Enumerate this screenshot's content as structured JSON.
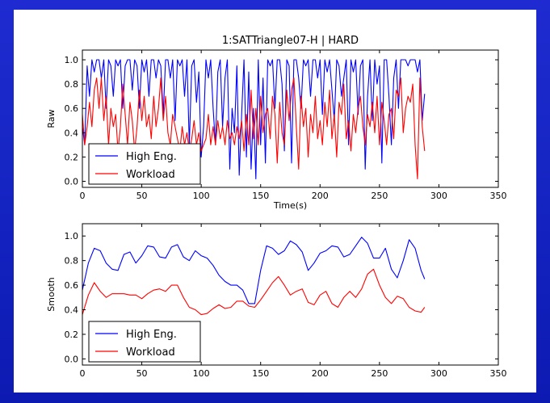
{
  "colors": {
    "background": "#1626c4",
    "panel": "#ffffff",
    "high_eng": "#0000ff",
    "workload": "#ff0000"
  },
  "chart_data": [
    {
      "type": "line",
      "title": "1:SATTriangle07-H | HARD",
      "xlabel": "Time(s)",
      "ylabel": "Raw",
      "xlim": [
        0,
        350
      ],
      "ylim": [
        -0.05,
        1.08
      ],
      "xticks": [
        0,
        50,
        100,
        150,
        200,
        250,
        300,
        350
      ],
      "yticks": [
        0.0,
        0.2,
        0.4,
        0.6,
        0.8,
        1.0
      ],
      "xtick_labels": [
        "0",
        "50",
        "100",
        "150",
        "200",
        "250",
        "300",
        "350"
      ],
      "ytick_labels": [
        "0.0",
        "0.2",
        "0.4",
        "0.6",
        "0.8",
        "1.0"
      ],
      "legend": "lower-left",
      "series": [
        {
          "name": "High Eng.",
          "color": "#0000ff",
          "x": [
            0,
            2,
            4,
            6,
            8,
            10,
            12,
            14,
            16,
            18,
            20,
            22,
            24,
            26,
            28,
            30,
            32,
            34,
            36,
            38,
            40,
            42,
            44,
            46,
            48,
            50,
            52,
            54,
            56,
            58,
            60,
            62,
            64,
            66,
            68,
            70,
            72,
            74,
            76,
            78,
            80,
            82,
            84,
            86,
            88,
            90,
            92,
            94,
            96,
            98,
            100,
            102,
            104,
            106,
            108,
            110,
            112,
            114,
            116,
            118,
            120,
            122,
            124,
            126,
            128,
            130,
            132,
            134,
            136,
            138,
            140,
            142,
            144,
            146,
            148,
            150,
            152,
            154,
            156,
            158,
            160,
            162,
            164,
            166,
            168,
            170,
            172,
            174,
            176,
            178,
            180,
            182,
            184,
            186,
            188,
            190,
            192,
            194,
            196,
            198,
            200,
            202,
            204,
            206,
            208,
            210,
            212,
            214,
            216,
            218,
            220,
            222,
            224,
            226,
            228,
            230,
            232,
            234,
            236,
            238,
            240,
            242,
            244,
            246,
            248,
            250,
            252,
            254,
            256,
            258,
            260,
            262,
            264,
            266,
            268,
            270,
            272,
            274,
            276,
            278,
            280,
            282,
            284,
            286,
            288
          ],
          "values": [
            0.45,
            0.3,
            0.95,
            0.7,
            1.0,
            0.9,
            1.0,
            1.0,
            0.85,
            1.0,
            0.6,
            1.0,
            0.95,
            0.7,
            1.0,
            0.95,
            1.0,
            0.6,
            0.95,
            1.0,
            1.0,
            0.75,
            1.0,
            0.95,
            0.6,
            1.0,
            0.9,
            1.0,
            0.7,
            1.0,
            1.0,
            0.85,
            1.0,
            0.95,
            0.55,
            1.0,
            1.0,
            0.85,
            1.0,
            0.5,
            1.0,
            0.95,
            1.0,
            0.7,
            1.0,
            0.3,
            0.95,
            1.0,
            0.65,
            0.9,
            0.2,
            0.45,
            1.0,
            0.85,
            1.0,
            0.6,
            0.3,
            0.9,
            1.0,
            0.45,
            0.85,
            1.0,
            0.1,
            0.6,
            0.4,
            0.95,
            0.05,
            0.55,
            1.0,
            0.2,
            0.9,
            0.1,
            0.6,
            0.02,
            1.0,
            0.3,
            0.85,
            0.15,
            1.0,
            0.95,
            1.0,
            0.6,
            1.0,
            1.0,
            0.8,
            0.25,
            1.0,
            0.95,
            0.15,
            1.0,
            1.0,
            0.85,
            0.6,
            1.0,
            0.95,
            1.0,
            0.7,
            1.0,
            1.0,
            0.85,
            1.0,
            0.55,
            1.0,
            0.9,
            1.0,
            0.75,
            0.5,
            1.0,
            0.95,
            0.7,
            0.85,
            1.0,
            0.3,
            1.0,
            0.9,
            1.0,
            0.55,
            0.95,
            1.0,
            0.1,
            0.7,
            1.0,
            0.5,
            1.0,
            0.8,
            0.95,
            0.15,
            1.0,
            1.0,
            0.7,
            0.3,
            0.85,
            1.0,
            0.6,
            1.0,
            1.0,
            1.0,
            0.95,
            1.0,
            1.0,
            1.0,
            0.9,
            1.0,
            0.5,
            0.72
          ],
          "note_unused": ""
        },
        {
          "name": "Workload",
          "color": "#ff0000",
          "x": [
            0,
            2,
            4,
            6,
            8,
            10,
            12,
            14,
            16,
            18,
            20,
            22,
            24,
            26,
            28,
            30,
            32,
            34,
            36,
            38,
            40,
            42,
            44,
            46,
            48,
            50,
            52,
            54,
            56,
            58,
            60,
            62,
            64,
            66,
            68,
            70,
            72,
            74,
            76,
            78,
            80,
            82,
            84,
            86,
            88,
            90,
            92,
            94,
            96,
            98,
            100,
            102,
            104,
            106,
            108,
            110,
            112,
            114,
            116,
            118,
            120,
            122,
            124,
            126,
            128,
            130,
            132,
            134,
            136,
            138,
            140,
            142,
            144,
            146,
            148,
            150,
            152,
            154,
            156,
            158,
            160,
            162,
            164,
            166,
            168,
            170,
            172,
            174,
            176,
            178,
            180,
            182,
            184,
            186,
            188,
            190,
            192,
            194,
            196,
            198,
            200,
            202,
            204,
            206,
            208,
            210,
            212,
            214,
            216,
            218,
            220,
            222,
            224,
            226,
            228,
            230,
            232,
            234,
            236,
            238,
            240,
            242,
            244,
            246,
            248,
            250,
            252,
            254,
            256,
            258,
            260,
            262,
            264,
            266,
            268,
            270,
            272,
            274,
            276,
            278,
            280,
            282,
            284,
            286,
            288
          ],
          "values": [
            0.55,
            0.3,
            0.45,
            0.65,
            0.45,
            0.75,
            0.85,
            0.6,
            0.85,
            0.5,
            0.7,
            0.3,
            0.6,
            0.45,
            0.55,
            0.25,
            0.45,
            0.8,
            0.55,
            0.3,
            0.65,
            0.5,
            0.25,
            0.45,
            0.75,
            0.5,
            0.7,
            0.45,
            0.55,
            0.35,
            0.7,
            0.45,
            0.6,
            0.85,
            0.5,
            0.7,
            0.4,
            0.3,
            0.55,
            0.45,
            0.35,
            0.25,
            0.45,
            0.3,
            0.4,
            0.25,
            0.35,
            0.5,
            0.3,
            0.4,
            0.25,
            0.3,
            0.35,
            0.55,
            0.3,
            0.45,
            0.3,
            0.5,
            0.35,
            0.45,
            0.3,
            0.5,
            0.35,
            0.4,
            0.3,
            0.45,
            0.35,
            0.5,
            0.25,
            0.55,
            0.3,
            0.75,
            0.35,
            0.6,
            0.3,
            0.7,
            0.4,
            0.55,
            0.6,
            0.35,
            0.7,
            0.55,
            0.15,
            0.65,
            0.4,
            0.3,
            0.75,
            0.5,
            0.75,
            0.85,
            0.45,
            0.1,
            0.7,
            0.45,
            0.6,
            0.2,
            0.55,
            0.4,
            0.7,
            0.35,
            0.5,
            0.3,
            0.65,
            0.45,
            0.75,
            0.35,
            0.55,
            0.2,
            0.65,
            0.55,
            0.8,
            0.35,
            0.5,
            0.25,
            0.55,
            0.4,
            0.6,
            0.7,
            0.45,
            0.3,
            0.55,
            0.45,
            0.65,
            0.4,
            0.7,
            0.3,
            0.65,
            0.5,
            0.3,
            0.55,
            0.6,
            0.35,
            0.75,
            0.7,
            0.85,
            0.4,
            0.6,
            0.7,
            0.65,
            0.8,
            0.3,
            0.02,
            0.85,
            0.45,
            0.25
          ],
          "note_unused": ""
        }
      ]
    },
    {
      "type": "line",
      "title": "",
      "xlabel": "",
      "ylabel": "Smooth",
      "xlim": [
        0,
        350
      ],
      "ylim": [
        -0.05,
        1.1
      ],
      "xticks": [
        0,
        50,
        100,
        150,
        200,
        250,
        300,
        350
      ],
      "yticks": [
        0.0,
        0.2,
        0.4,
        0.6,
        0.8,
        1.0
      ],
      "xtick_labels": [
        "0",
        "50",
        "100",
        "150",
        "200",
        "250",
        "300",
        "350"
      ],
      "ytick_labels": [
        "0.0",
        "0.2",
        "0.4",
        "0.6",
        "0.8",
        "1.0"
      ],
      "legend": "lower-left",
      "series": [
        {
          "name": "High Eng.",
          "color": "#0000ff",
          "x": [
            0,
            5,
            10,
            15,
            20,
            25,
            30,
            35,
            40,
            45,
            50,
            55,
            60,
            65,
            70,
            75,
            80,
            85,
            90,
            95,
            100,
            105,
            110,
            115,
            120,
            125,
            130,
            135,
            140,
            145,
            150,
            155,
            160,
            165,
            170,
            175,
            180,
            185,
            190,
            195,
            200,
            205,
            210,
            215,
            220,
            225,
            230,
            235,
            240,
            245,
            250,
            255,
            260,
            265,
            270,
            275,
            280,
            285,
            288
          ],
          "values": [
            0.56,
            0.78,
            0.9,
            0.88,
            0.78,
            0.73,
            0.72,
            0.85,
            0.87,
            0.78,
            0.84,
            0.92,
            0.91,
            0.83,
            0.82,
            0.91,
            0.93,
            0.83,
            0.8,
            0.88,
            0.84,
            0.82,
            0.76,
            0.68,
            0.63,
            0.6,
            0.6,
            0.56,
            0.45,
            0.45,
            0.72,
            0.92,
            0.9,
            0.85,
            0.88,
            0.96,
            0.93,
            0.87,
            0.72,
            0.78,
            0.86,
            0.88,
            0.92,
            0.91,
            0.83,
            0.85,
            0.92,
            0.99,
            0.94,
            0.82,
            0.82,
            0.9,
            0.73,
            0.66,
            0.8,
            0.97,
            0.9,
            0.72,
            0.65
          ],
          "note_unused": ""
        },
        {
          "name": "Workload",
          "color": "#ff0000",
          "x": [
            0,
            5,
            10,
            15,
            20,
            25,
            30,
            35,
            40,
            45,
            50,
            55,
            60,
            65,
            70,
            75,
            80,
            85,
            90,
            95,
            100,
            105,
            110,
            115,
            120,
            125,
            130,
            135,
            140,
            145,
            150,
            155,
            160,
            165,
            170,
            175,
            180,
            185,
            190,
            195,
            200,
            205,
            210,
            215,
            220,
            225,
            230,
            235,
            240,
            245,
            250,
            255,
            260,
            265,
            270,
            275,
            280,
            285,
            288
          ],
          "values": [
            0.36,
            0.52,
            0.62,
            0.55,
            0.5,
            0.53,
            0.53,
            0.53,
            0.52,
            0.52,
            0.49,
            0.53,
            0.56,
            0.57,
            0.55,
            0.6,
            0.6,
            0.5,
            0.42,
            0.4,
            0.36,
            0.37,
            0.41,
            0.44,
            0.41,
            0.42,
            0.47,
            0.47,
            0.43,
            0.42,
            0.48,
            0.55,
            0.62,
            0.67,
            0.6,
            0.52,
            0.55,
            0.57,
            0.46,
            0.44,
            0.52,
            0.55,
            0.45,
            0.42,
            0.5,
            0.55,
            0.5,
            0.57,
            0.69,
            0.73,
            0.6,
            0.5,
            0.45,
            0.51,
            0.49,
            0.42,
            0.39,
            0.38,
            0.42
          ],
          "note_unused": ""
        }
      ]
    }
  ]
}
